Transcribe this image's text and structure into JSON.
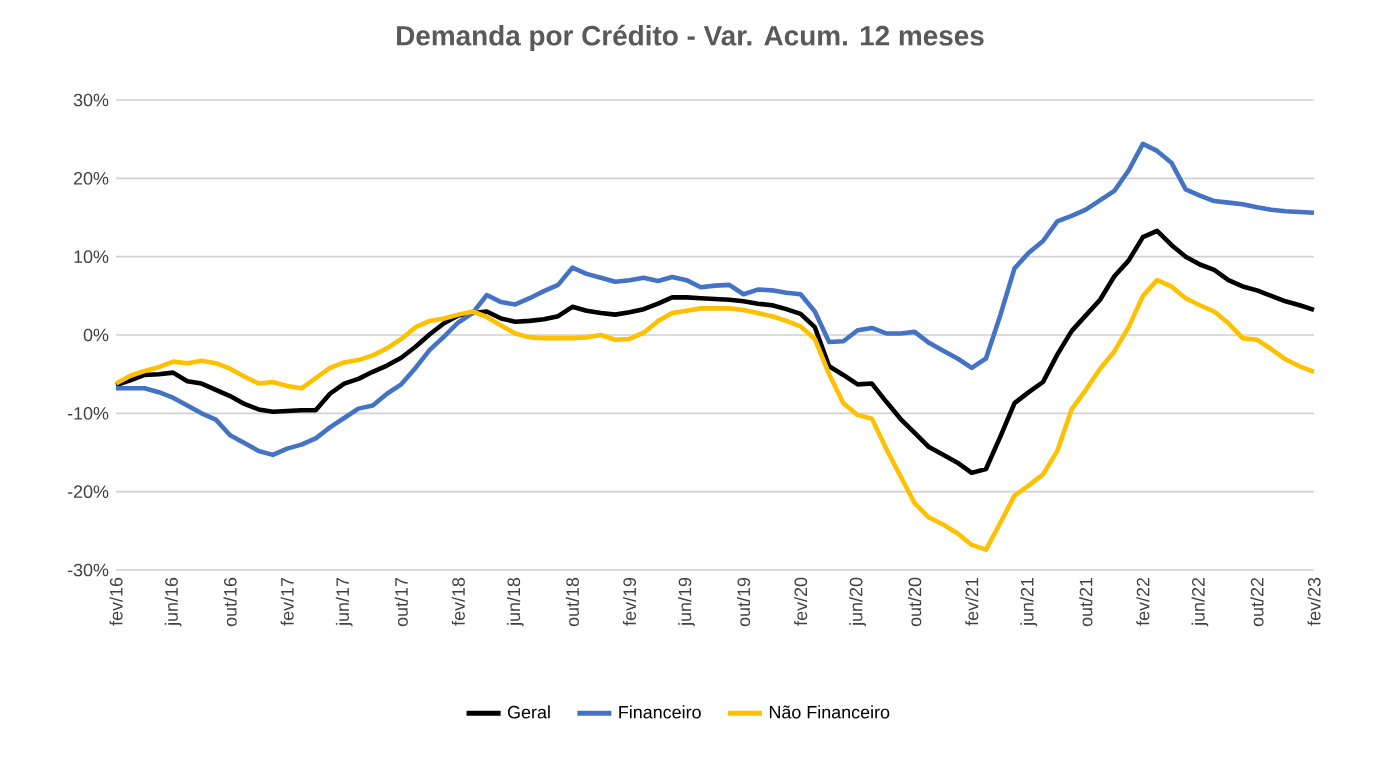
{
  "chart_data": {
    "type": "line",
    "title": "Demanda por Crédito - Var. Acum. 12 meses",
    "categories": [
      "fev/16",
      null,
      null,
      null,
      "jun/16",
      null,
      null,
      null,
      "out/16",
      null,
      null,
      null,
      "fev/17",
      null,
      null,
      null,
      "jun/17",
      null,
      null,
      null,
      "out/17",
      null,
      null,
      null,
      "fev/18",
      null,
      null,
      null,
      "jun/18",
      null,
      null,
      null,
      "out/18",
      null,
      null,
      null,
      "fev/19",
      null,
      null,
      null,
      "jun/19",
      null,
      null,
      null,
      "out/19",
      null,
      null,
      null,
      "fev/20",
      null,
      null,
      null,
      "jun/20",
      null,
      null,
      null,
      "out/20",
      null,
      null,
      null,
      "fev/21",
      null,
      null,
      null,
      "jun/21",
      null,
      null,
      null,
      "out/21",
      null,
      null,
      null,
      "fev/22",
      null,
      null,
      null,
      "jun/22",
      null,
      null,
      null,
      "out/22",
      null,
      null,
      null,
      "fev/23"
    ],
    "series": [
      {
        "name": "Geral",
        "color": "#000000",
        "values": [
          -6.4,
          -5.8,
          -5.1,
          -5.0,
          -4.8,
          -5.9,
          -6.2,
          -7.0,
          -7.8,
          -8.8,
          -9.5,
          -9.8,
          -9.7,
          -9.6,
          -9.6,
          -7.5,
          -6.2,
          -5.6,
          -4.7,
          -3.9,
          -2.9,
          -1.5,
          0.1,
          1.5,
          2.5,
          2.8,
          3.0,
          2.1,
          1.7,
          1.8,
          2.0,
          2.4,
          3.6,
          3.1,
          2.8,
          2.6,
          2.9,
          3.3,
          4.0,
          4.8,
          4.8,
          4.7,
          4.6,
          4.5,
          4.3,
          4.0,
          3.8,
          3.3,
          2.7,
          1.0,
          -4.0,
          -5.1,
          -6.3,
          -6.2,
          -8.5,
          -10.7,
          -12.5,
          -14.3,
          -15.3,
          -16.3,
          -17.6,
          -17.1,
          -13.0,
          -8.7,
          -7.3,
          -6.0,
          -2.5,
          0.5,
          2.5,
          4.5,
          7.5,
          9.5,
          12.5,
          13.3,
          11.5,
          10.0,
          9.0,
          8.3,
          7.0,
          6.2,
          5.7,
          5.0,
          4.3,
          3.8,
          3.2
        ]
      },
      {
        "name": "Financeiro",
        "color": "#4472c4",
        "values": [
          -6.8,
          -6.8,
          -6.8,
          -7.3,
          -8.0,
          -9.0,
          -10.0,
          -10.8,
          -12.8,
          -13.8,
          -14.8,
          -15.3,
          -14.5,
          -14.0,
          -13.2,
          -11.8,
          -10.6,
          -9.4,
          -9.0,
          -7.5,
          -6.3,
          -4.2,
          -1.9,
          -0.2,
          1.6,
          2.8,
          5.1,
          4.2,
          3.9,
          4.7,
          5.6,
          6.4,
          8.6,
          7.8,
          7.3,
          6.8,
          7.0,
          7.3,
          6.9,
          7.4,
          7.0,
          6.1,
          6.3,
          6.4,
          5.2,
          5.8,
          5.7,
          5.4,
          5.2,
          3.0,
          -0.9,
          -0.8,
          0.6,
          0.9,
          0.2,
          0.2,
          0.4,
          -1.0,
          -2.0,
          -3.0,
          -4.2,
          -3.0,
          2.5,
          8.5,
          10.5,
          12.0,
          14.5,
          15.2,
          16.0,
          17.2,
          18.4,
          21.0,
          24.4,
          23.5,
          22.0,
          18.6,
          17.8,
          17.1,
          16.9,
          16.7,
          16.3,
          16.0,
          15.8,
          15.7,
          15.6
        ]
      },
      {
        "name": "Não Financeiro",
        "color": "#ffc000",
        "values": [
          -6.2,
          -5.2,
          -4.6,
          -4.1,
          -3.4,
          -3.6,
          -3.3,
          -3.6,
          -4.3,
          -5.3,
          -6.2,
          -6.0,
          -6.5,
          -6.8,
          -5.5,
          -4.2,
          -3.5,
          -3.2,
          -2.6,
          -1.7,
          -0.5,
          1.0,
          1.8,
          2.1,
          2.6,
          3.0,
          2.3,
          1.2,
          0.2,
          -0.3,
          -0.4,
          -0.4,
          -0.4,
          -0.3,
          0.0,
          -0.6,
          -0.5,
          0.3,
          1.8,
          2.8,
          3.1,
          3.4,
          3.4,
          3.4,
          3.2,
          2.8,
          2.4,
          1.8,
          1.1,
          -0.5,
          -5.0,
          -8.7,
          -10.2,
          -10.7,
          -14.5,
          -18.0,
          -21.5,
          -23.3,
          -24.2,
          -25.3,
          -26.8,
          -27.4,
          -24.0,
          -20.5,
          -19.2,
          -17.8,
          -14.8,
          -9.5,
          -7.0,
          -4.3,
          -2.1,
          1.0,
          5.0,
          7.0,
          6.2,
          4.7,
          3.8,
          3.0,
          1.5,
          -0.4,
          -0.6,
          -1.8,
          -3.1,
          -4.0,
          -4.7
        ]
      }
    ],
    "ylim": [
      -30,
      30
    ],
    "yticks": [
      {
        "value": -30,
        "label": "-30%"
      },
      {
        "value": -20,
        "label": "-20%"
      },
      {
        "value": -10,
        "label": "-10%"
      },
      {
        "value": 0,
        "label": "0%"
      },
      {
        "value": 10,
        "label": "10%"
      },
      {
        "value": 20,
        "label": "20%"
      },
      {
        "value": 30,
        "label": "30%"
      }
    ],
    "grid": "y",
    "legend": "bottom",
    "marker": "none",
    "line_style": "solid"
  }
}
